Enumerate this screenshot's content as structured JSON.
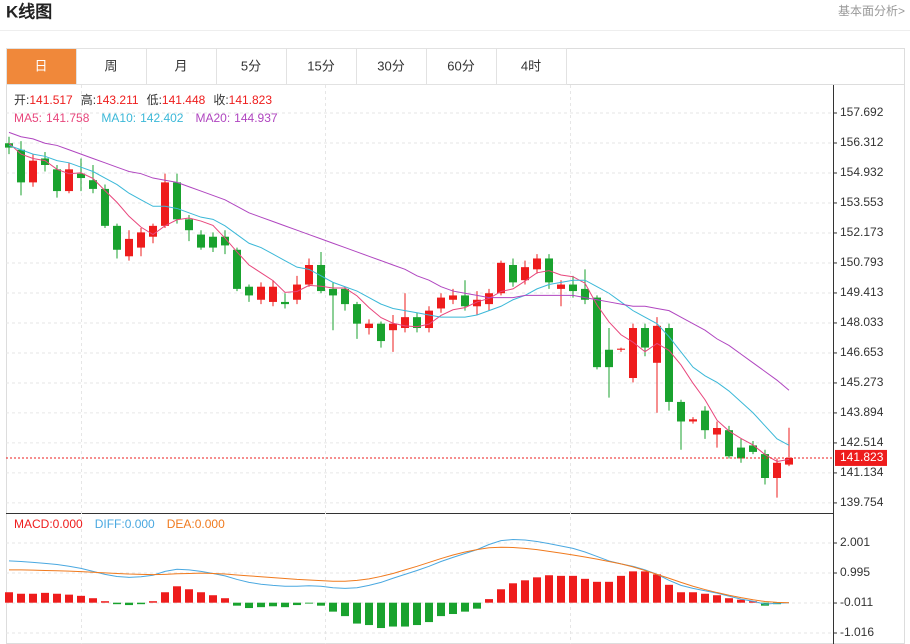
{
  "chart_data": {
    "type": "candlestick",
    "title": "K线图",
    "link": "基本面分析>",
    "tabs": [
      "日",
      "周",
      "月",
      "5分",
      "15分",
      "30分",
      "60分",
      "4时"
    ],
    "active_tab": 0,
    "ohlc_labels": [
      "开:",
      "高:",
      "低:",
      "收:"
    ],
    "up_color": "#ee1c1c",
    "down_color": "#19a22e",
    "ylim": [
      139.29,
      158.98
    ],
    "yticks": [
      157.692,
      156.312,
      154.932,
      153.553,
      152.173,
      150.793,
      149.413,
      148.033,
      146.653,
      145.273,
      143.894,
      142.514,
      141.134,
      139.754
    ],
    "grid": true,
    "open": [
      156.3,
      156.0,
      154.5,
      155.6,
      155.1,
      154.1,
      154.9,
      154.6,
      154.2,
      152.5,
      151.1,
      151.5,
      152.0,
      152.5,
      154.5,
      152.8,
      152.1,
      152.0,
      152.0,
      151.4,
      149.7,
      149.1,
      149.0,
      149.0,
      149.1,
      149.8,
      150.7,
      149.6,
      149.6,
      148.9,
      147.8,
      148.0,
      147.7,
      147.8,
      148.3,
      147.8,
      148.7,
      149.1,
      149.3,
      148.8,
      148.9,
      149.4,
      150.7,
      150.0,
      150.5,
      151.0,
      149.6,
      149.8,
      149.6,
      149.2,
      146.8,
      146.8,
      145.5,
      147.8,
      146.2,
      147.8,
      144.4,
      143.5,
      144.0,
      142.9,
      143.1,
      142.3,
      142.4,
      142.0,
      140.9,
      141.517
    ],
    "high": [
      156.6,
      156.4,
      155.8,
      155.9,
      155.3,
      155.4,
      155.6,
      155.3,
      154.4,
      152.6,
      152.3,
      152.4,
      152.6,
      154.9,
      154.9,
      153.0,
      152.3,
      152.2,
      152.3,
      151.5,
      149.8,
      149.9,
      150.0,
      149.4,
      150.2,
      151.0,
      151.3,
      149.9,
      149.7,
      149.0,
      148.2,
      148.1,
      148.4,
      149.4,
      148.5,
      148.8,
      149.4,
      149.6,
      150.0,
      149.5,
      149.6,
      150.9,
      151.0,
      150.9,
      151.2,
      151.2,
      150.0,
      150.2,
      150.5,
      149.3,
      147.8,
      146.9,
      148.0,
      148.0,
      148.3,
      148.0,
      144.5,
      143.7,
      144.2,
      143.5,
      143.3,
      142.7,
      142.6,
      142.2,
      141.8,
      143.211
    ],
    "low": [
      155.8,
      153.9,
      154.3,
      155.0,
      153.8,
      154.0,
      154.1,
      154.0,
      152.4,
      151.0,
      150.9,
      151.1,
      151.7,
      152.4,
      152.6,
      151.8,
      151.4,
      151.3,
      151.2,
      149.5,
      149.0,
      148.9,
      148.8,
      148.7,
      148.9,
      149.7,
      149.4,
      147.7,
      148.6,
      147.3,
      147.5,
      146.9,
      146.7,
      147.6,
      147.6,
      147.6,
      148.5,
      148.9,
      148.6,
      148.4,
      148.6,
      149.3,
      149.7,
      149.8,
      150.3,
      149.6,
      148.8,
      149.2,
      148.9,
      145.9,
      144.6,
      146.7,
      145.3,
      146.5,
      143.9,
      144.0,
      142.2,
      143.4,
      142.7,
      142.3,
      141.8,
      141.6,
      142.0,
      140.6,
      140.0,
      141.448
    ],
    "close": [
      156.1,
      154.5,
      155.5,
      155.3,
      154.1,
      155.1,
      154.7,
      154.2,
      152.5,
      151.4,
      151.9,
      152.2,
      152.5,
      154.5,
      152.8,
      152.3,
      151.5,
      151.5,
      151.6,
      149.6,
      149.3,
      149.7,
      149.7,
      148.9,
      149.8,
      150.7,
      149.5,
      149.3,
      148.9,
      148.0,
      148.0,
      147.2,
      148.0,
      148.3,
      147.8,
      148.6,
      149.2,
      149.3,
      148.8,
      149.1,
      149.4,
      150.8,
      149.9,
      150.6,
      151.0,
      149.9,
      149.8,
      149.5,
      149.1,
      146.0,
      146.0,
      146.85,
      147.8,
      146.9,
      147.9,
      144.4,
      143.5,
      143.6,
      143.1,
      143.2,
      141.9,
      141.8,
      142.1,
      140.9,
      141.6,
      141.823
    ],
    "ma_series": [
      {
        "name": "MA5:",
        "color": "#e8467c",
        "values": [
          156.3,
          155.8,
          155.6,
          155.5,
          155.1,
          154.9,
          154.94,
          154.68,
          154.12,
          153.58,
          152.94,
          152.44,
          152.1,
          152.5,
          152.78,
          152.86,
          152.72,
          152.52,
          151.94,
          151.3,
          150.7,
          150.34,
          149.98,
          149.44,
          149.48,
          149.76,
          149.72,
          149.64,
          149.64,
          149.28,
          148.74,
          148.28,
          148.02,
          147.9,
          147.86,
          147.98,
          148.38,
          148.64,
          148.74,
          149.0,
          149.16,
          149.48,
          149.6,
          149.96,
          150.34,
          150.44,
          150.24,
          150.16,
          149.86,
          148.86,
          148.08,
          147.49,
          147.15,
          146.71,
          147.09,
          146.77,
          146.1,
          145.26,
          144.5,
          143.56,
          143.06,
          142.72,
          142.42,
          141.98,
          141.66,
          141.758
        ]
      },
      {
        "name": "MA10:",
        "color": "#3bb8d8",
        "values": [
          156.2,
          156.0,
          155.8,
          155.7,
          155.5,
          155.4,
          155.2,
          155.0,
          154.7,
          154.4,
          154.0,
          153.7,
          153.4,
          153.4,
          153.3,
          153.1,
          152.9,
          152.8,
          152.5,
          152.1,
          151.7,
          151.5,
          151.2,
          150.9,
          150.6,
          150.5,
          150.2,
          149.9,
          149.7,
          149.5,
          149.2,
          148.9,
          148.7,
          148.6,
          148.5,
          148.4,
          148.3,
          148.3,
          148.3,
          148.4,
          148.6,
          148.8,
          149.1,
          149.3,
          149.6,
          149.8,
          149.9,
          150.0,
          150.0,
          149.7,
          149.4,
          149.0,
          148.6,
          148.3,
          148.0,
          147.4,
          146.7,
          146.0,
          145.6,
          145.3,
          144.9,
          144.4,
          143.9,
          143.3,
          142.7,
          142.402
        ]
      },
      {
        "name": "MA20:",
        "color": "#b046c0",
        "values": [
          156.8,
          156.6,
          156.5,
          156.3,
          156.2,
          156.0,
          155.8,
          155.6,
          155.4,
          155.2,
          155.0,
          154.9,
          154.7,
          154.6,
          154.5,
          154.3,
          154.1,
          153.9,
          153.7,
          153.4,
          153.1,
          152.9,
          152.7,
          152.5,
          152.3,
          152.1,
          151.9,
          151.7,
          151.5,
          151.3,
          151.1,
          150.9,
          150.7,
          150.5,
          150.2,
          150.0,
          149.7,
          149.5,
          149.4,
          149.3,
          149.2,
          149.2,
          149.2,
          149.3,
          149.3,
          149.3,
          149.3,
          149.3,
          149.2,
          149.1,
          149.0,
          148.9,
          148.8,
          148.8,
          148.7,
          148.6,
          148.3,
          148.0,
          147.7,
          147.3,
          147.0,
          146.6,
          146.2,
          145.8,
          145.4,
          144.937
        ]
      }
    ],
    "macd": {
      "ylim": [
        -1.385,
        3.007
      ],
      "yticks": [
        2.001,
        0.995,
        -0.011,
        -1.016
      ],
      "histogram": {
        "name": "MACD:",
        "color": "#ee1c1c",
        "legend_label": "0.000",
        "values": [
          0.35,
          0.3,
          0.3,
          0.33,
          0.3,
          0.27,
          0.23,
          0.15,
          0.05,
          -0.05,
          -0.08,
          -0.05,
          0.05,
          0.35,
          0.55,
          0.45,
          0.35,
          0.25,
          0.15,
          -0.1,
          -0.18,
          -0.15,
          -0.12,
          -0.15,
          -0.08,
          -0.03,
          -0.1,
          -0.3,
          -0.45,
          -0.7,
          -0.75,
          -0.85,
          -0.8,
          -0.8,
          -0.75,
          -0.65,
          -0.45,
          -0.38,
          -0.3,
          -0.2,
          0.12,
          0.45,
          0.65,
          0.75,
          0.85,
          0.92,
          0.9,
          0.9,
          0.8,
          0.7,
          0.7,
          0.9,
          1.05,
          1.05,
          0.95,
          0.6,
          0.35,
          0.35,
          0.3,
          0.25,
          0.15,
          0.1,
          0.05,
          -0.1,
          -0.05,
          0.0
        ]
      },
      "diff": {
        "name": "DIFF:",
        "color": "#4aa8e0",
        "legend_label": "0.000",
        "values": [
          1.4,
          1.38,
          1.35,
          1.32,
          1.28,
          1.22,
          1.15,
          1.05,
          0.95,
          0.88,
          0.85,
          0.87,
          0.92,
          1.05,
          1.12,
          1.1,
          1.05,
          0.98,
          0.9,
          0.78,
          0.68,
          0.62,
          0.58,
          0.55,
          0.55,
          0.57,
          0.55,
          0.5,
          0.48,
          0.5,
          0.58,
          0.68,
          0.82,
          0.95,
          1.08,
          1.22,
          1.38,
          1.52,
          1.65,
          1.78,
          1.95,
          2.08,
          2.12,
          2.1,
          2.05,
          1.98,
          1.9,
          1.82,
          1.7,
          1.55,
          1.4,
          1.3,
          1.22,
          1.1,
          0.95,
          0.75,
          0.58,
          0.48,
          0.4,
          0.32,
          0.22,
          0.12,
          0.05,
          -0.05,
          -0.02,
          0.0
        ]
      },
      "dea": {
        "name": "DEA:",
        "color": "#f07a1e",
        "legend_label": "0.000",
        "values": [
          1.1,
          1.1,
          1.09,
          1.08,
          1.07,
          1.06,
          1.04,
          1.02,
          1.0,
          0.98,
          0.96,
          0.95,
          0.94,
          0.95,
          0.97,
          0.98,
          0.99,
          0.98,
          0.96,
          0.93,
          0.9,
          0.87,
          0.84,
          0.81,
          0.78,
          0.76,
          0.74,
          0.72,
          0.72,
          0.75,
          0.8,
          0.88,
          0.98,
          1.1,
          1.22,
          1.35,
          1.48,
          1.6,
          1.7,
          1.78,
          1.84,
          1.86,
          1.85,
          1.82,
          1.78,
          1.72,
          1.66,
          1.6,
          1.53,
          1.46,
          1.38,
          1.3,
          1.2,
          1.08,
          0.95,
          0.82,
          0.68,
          0.55,
          0.44,
          0.34,
          0.25,
          0.17,
          0.1,
          0.04,
          0.01,
          0.0
        ]
      }
    }
  }
}
